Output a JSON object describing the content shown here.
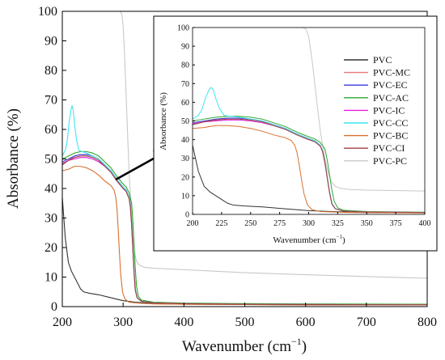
{
  "chart_data": [
    {
      "type": "line",
      "xlabel": "Wavenumber (cm",
      "xlabel_sup": "−1",
      "xlabel_tail": ")",
      "ylabel": "Absorbance (%)",
      "xlim": [
        200,
        800
      ],
      "ylim": [
        0,
        100
      ],
      "xticks": [
        "200",
        "300",
        "400",
        "500",
        "600",
        "700",
        "800"
      ],
      "yticks": [
        "0",
        "10",
        "20",
        "30",
        "40",
        "50",
        "60",
        "70",
        "80",
        "90",
        "100"
      ],
      "grid": false,
      "series": [
        {
          "name": "PVC",
          "color": "#333333",
          "points": [
            [
              200,
              37
            ],
            [
              205,
              23
            ],
            [
              210,
              15
            ],
            [
              215,
              12
            ],
            [
              220,
              10
            ],
            [
              225,
              8
            ],
            [
              230,
              6
            ],
            [
              235,
              5
            ],
            [
              245,
              4.5
            ],
            [
              260,
              4
            ],
            [
              280,
              3
            ],
            [
              300,
              2
            ],
            [
              320,
              1.5
            ],
            [
              350,
              1
            ],
            [
              400,
              0.8
            ],
            [
              500,
              0.7
            ],
            [
              600,
              0.6
            ],
            [
              700,
              0.6
            ],
            [
              800,
              0.6
            ]
          ]
        },
        {
          "name": "PVC-MC",
          "color": "#e87878",
          "points": [
            [
              200,
              48
            ],
            [
              210,
              49.5
            ],
            [
              220,
              51
            ],
            [
              230,
              51.5
            ],
            [
              240,
              51.5
            ],
            [
              250,
              51
            ],
            [
              260,
              50
            ],
            [
              270,
              48
            ],
            [
              280,
              46
            ],
            [
              290,
              43
            ],
            [
              300,
              40.5
            ],
            [
              305,
              39.5
            ],
            [
              310,
              37
            ],
            [
              312,
              34
            ],
            [
              314,
              28
            ],
            [
              316,
              20
            ],
            [
              318,
              12
            ],
            [
              320,
              6
            ],
            [
              323,
              3
            ],
            [
              330,
              1.8
            ],
            [
              350,
              1.3
            ],
            [
              400,
              1
            ],
            [
              500,
              0.8
            ],
            [
              600,
              0.7
            ],
            [
              800,
              0.6
            ]
          ]
        },
        {
          "name": "PVC-EC",
          "color": "#3a3ad8",
          "points": [
            [
              200,
              49
            ],
            [
              210,
              50
            ],
            [
              220,
              51
            ],
            [
              230,
              51.5
            ],
            [
              240,
              51.5
            ],
            [
              250,
              51
            ],
            [
              260,
              50
            ],
            [
              270,
              48
            ],
            [
              280,
              46
            ],
            [
              290,
              43
            ],
            [
              300,
              40.5
            ],
            [
              305,
              39.5
            ],
            [
              310,
              37
            ],
            [
              312,
              34
            ],
            [
              314,
              28
            ],
            [
              316,
              20
            ],
            [
              318,
              12
            ],
            [
              320,
              6
            ],
            [
              323,
              3
            ],
            [
              330,
              1.8
            ],
            [
              350,
              1.3
            ],
            [
              400,
              1
            ],
            [
              500,
              0.8
            ],
            [
              600,
              0.7
            ],
            [
              800,
              0.6
            ]
          ]
        },
        {
          "name": "PVC-AC",
          "color": "#2ea82e",
          "points": [
            [
              200,
              50
            ],
            [
              210,
              51
            ],
            [
              220,
              52
            ],
            [
              230,
              52.5
            ],
            [
              240,
              52.5
            ],
            [
              250,
              52
            ],
            [
              260,
              51
            ],
            [
              270,
              49
            ],
            [
              280,
              47
            ],
            [
              290,
              44
            ],
            [
              300,
              41.5
            ],
            [
              305,
              40.5
            ],
            [
              310,
              38.5
            ],
            [
              314,
              35
            ],
            [
              316,
              29
            ],
            [
              318,
              21
            ],
            [
              320,
              13
            ],
            [
              322,
              7
            ],
            [
              325,
              3.5
            ],
            [
              330,
              2.2
            ],
            [
              350,
              1.5
            ],
            [
              400,
              1.2
            ],
            [
              500,
              1
            ],
            [
              600,
              0.9
            ],
            [
              800,
              0.8
            ]
          ]
        },
        {
          "name": "PVC-IC",
          "color": "#e020e0",
          "points": [
            [
              200,
              48.5
            ],
            [
              210,
              49.5
            ],
            [
              220,
              50
            ],
            [
              230,
              50.5
            ],
            [
              240,
              50.5
            ],
            [
              250,
              50
            ],
            [
              260,
              49
            ],
            [
              270,
              47.5
            ],
            [
              280,
              45.5
            ],
            [
              290,
              42.5
            ],
            [
              300,
              40
            ],
            [
              305,
              39
            ],
            [
              310,
              36.5
            ],
            [
              312,
              33.5
            ],
            [
              314,
              27.5
            ],
            [
              316,
              19.5
            ],
            [
              318,
              11.5
            ],
            [
              320,
              5.5
            ],
            [
              323,
              3
            ],
            [
              330,
              1.8
            ],
            [
              350,
              1.3
            ],
            [
              400,
              1
            ],
            [
              500,
              0.8
            ],
            [
              600,
              0.7
            ],
            [
              800,
              0.6
            ]
          ]
        },
        {
          "name": "PVC-CC",
          "color": "#3fe6f0",
          "points": [
            [
              200,
              51
            ],
            [
              205,
              53
            ],
            [
              208,
              56
            ],
            [
              211,
              62
            ],
            [
              214,
              66.5
            ],
            [
              216,
              68
            ],
            [
              218,
              66.5
            ],
            [
              220,
              62
            ],
            [
              223,
              57
            ],
            [
              227,
              53
            ],
            [
              232,
              52.5
            ],
            [
              240,
              52
            ],
            [
              250,
              51
            ],
            [
              260,
              50
            ],
            [
              270,
              48
            ],
            [
              280,
              46
            ],
            [
              290,
              43
            ],
            [
              300,
              40.5
            ],
            [
              305,
              39.5
            ],
            [
              310,
              37
            ],
            [
              312,
              34
            ],
            [
              314,
              28
            ],
            [
              316,
              20
            ],
            [
              318,
              12
            ],
            [
              320,
              6
            ],
            [
              323,
              3
            ],
            [
              330,
              1.8
            ],
            [
              350,
              1.3
            ],
            [
              400,
              1
            ],
            [
              500,
              0.8
            ],
            [
              600,
              0.7
            ],
            [
              800,
              0.6
            ]
          ]
        },
        {
          "name": "PVC-BC",
          "color": "#d8702e",
          "points": [
            [
              200,
              46
            ],
            [
              210,
              46.5
            ],
            [
              220,
              47.5
            ],
            [
              230,
              47.5
            ],
            [
              240,
              47
            ],
            [
              250,
              46
            ],
            [
              260,
              44.5
            ],
            [
              270,
              42.5
            ],
            [
              280,
              41
            ],
            [
              285,
              39.5
            ],
            [
              288,
              37
            ],
            [
              290,
              33
            ],
            [
              292,
              26
            ],
            [
              294,
              18
            ],
            [
              296,
              11
            ],
            [
              299,
              5
            ],
            [
              303,
              2.5
            ],
            [
              310,
              1.5
            ],
            [
              330,
              1.1
            ],
            [
              350,
              0.9
            ],
            [
              400,
              0.8
            ],
            [
              500,
              0.7
            ],
            [
              600,
              0.6
            ],
            [
              800,
              0.6
            ]
          ]
        },
        {
          "name": "PVC-CI",
          "color": "#a04040",
          "points": [
            [
              200,
              48
            ],
            [
              210,
              49.5
            ],
            [
              220,
              50.5
            ],
            [
              230,
              51
            ],
            [
              240,
              51
            ],
            [
              250,
              50.5
            ],
            [
              260,
              49.5
            ],
            [
              270,
              47.5
            ],
            [
              280,
              45.5
            ],
            [
              290,
              42.5
            ],
            [
              300,
              40
            ],
            [
              305,
              39
            ],
            [
              310,
              36.5
            ],
            [
              312,
              33.5
            ],
            [
              314,
              27.5
            ],
            [
              316,
              19.5
            ],
            [
              318,
              11.5
            ],
            [
              320,
              5.5
            ],
            [
              323,
              3
            ],
            [
              330,
              1.8
            ],
            [
              350,
              1.3
            ],
            [
              400,
              1
            ],
            [
              500,
              0.8
            ],
            [
              600,
              0.7
            ],
            [
              800,
              0.6
            ]
          ]
        },
        {
          "name": "PVC-PC",
          "color": "#c8c8c8",
          "points": [
            [
              200,
              100
            ],
            [
              280,
              100
            ],
            [
              295,
              100
            ],
            [
              298,
              99
            ],
            [
              300,
              95
            ],
            [
              302,
              87
            ],
            [
              304,
              77
            ],
            [
              306,
              66
            ],
            [
              308,
              55
            ],
            [
              310,
              45
            ],
            [
              312,
              37
            ],
            [
              314,
              30
            ],
            [
              316,
              24
            ],
            [
              318,
              20
            ],
            [
              320,
              17
            ],
            [
              323,
              15
            ],
            [
              327,
              14
            ],
            [
              335,
              13.3
            ],
            [
              350,
              13
            ],
            [
              400,
              12.5
            ],
            [
              500,
              11.5
            ],
            [
              600,
              10.8
            ],
            [
              700,
              10.2
            ],
            [
              800,
              9.6
            ]
          ]
        }
      ]
    },
    {
      "type": "line",
      "xlabel": "Wavenumber (cm",
      "xlabel_sup": "−1",
      "xlabel_tail": ")",
      "ylabel": "Absorbance (%)",
      "xlim": [
        200,
        400
      ],
      "ylim": [
        0,
        100
      ],
      "xticks": [
        "200",
        "225",
        "250",
        "275",
        "300",
        "325",
        "350",
        "375",
        "400"
      ],
      "yticks": [
        "0",
        "10",
        "20",
        "30",
        "40",
        "50",
        "60",
        "70",
        "80",
        "90",
        "100"
      ],
      "grid": false,
      "legend": "top-right",
      "series": "same as main chart"
    }
  ]
}
